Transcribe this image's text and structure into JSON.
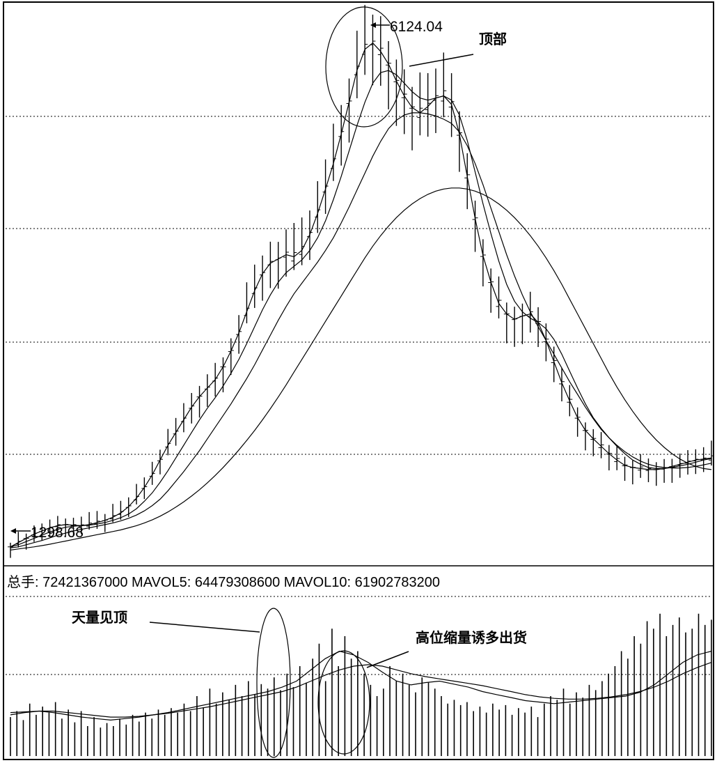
{
  "chart_data": [
    {
      "type": "candlestick-line",
      "title": "",
      "price_labels": {
        "high": "6124.04",
        "low": "1298.68"
      },
      "annotations": {
        "top": "顶部"
      },
      "gridlines": true,
      "series": [
        {
          "values": [
            1300,
            1340,
            1380,
            1420,
            1450,
            1480,
            1500,
            1510,
            1505,
            1500,
            1510,
            1530,
            1550,
            1580,
            1620,
            1680,
            1760,
            1860,
            1980,
            2120,
            2260,
            2380,
            2500,
            2620,
            2720,
            2800,
            2880,
            3000,
            3150,
            3320,
            3520,
            3720,
            3880,
            3980,
            4020,
            4060,
            4040,
            4100,
            4250,
            4450,
            4680,
            4920,
            5200,
            5500,
            5800,
            6000,
            6060,
            5980,
            5860,
            5700,
            5560,
            5450,
            5400,
            5460,
            5540,
            5560,
            5480,
            5200,
            4800,
            4400,
            4050,
            3800,
            3600,
            3500,
            3450,
            3480,
            3500,
            3420,
            3250,
            3050,
            2850,
            2680,
            2520,
            2400,
            2320,
            2250,
            2180,
            2120,
            2070,
            2050,
            2040,
            2030,
            2030,
            2040,
            2060,
            2080,
            2100,
            2120,
            2130,
            2140
          ]
        },
        {
          "values": [
            1300,
            1320,
            1350,
            1380,
            1410,
            1440,
            1465,
            1485,
            1495,
            1500,
            1505,
            1515,
            1530,
            1550,
            1575,
            1610,
            1660,
            1730,
            1810,
            1910,
            2020,
            2140,
            2260,
            2380,
            2500,
            2610,
            2710,
            2820,
            2940,
            3070,
            3220,
            3380,
            3540,
            3680,
            3800,
            3890,
            3950,
            4010,
            4100,
            4220,
            4380,
            4580,
            4800,
            5040,
            5280,
            5500,
            5680,
            5780,
            5800,
            5760,
            5680,
            5600,
            5540,
            5520,
            5540,
            5560,
            5520,
            5380,
            5140,
            4840,
            4540,
            4260,
            4000,
            3780,
            3620,
            3520,
            3460,
            3420,
            3360,
            3260,
            3120,
            2960,
            2800,
            2650,
            2520,
            2420,
            2330,
            2250,
            2180,
            2120,
            2080,
            2050,
            2040,
            2040,
            2050,
            2065,
            2080,
            2100,
            2120,
            2135
          ]
        },
        {
          "values": [
            1290,
            1300,
            1320,
            1340,
            1360,
            1385,
            1410,
            1430,
            1450,
            1465,
            1480,
            1495,
            1510,
            1525,
            1545,
            1570,
            1600,
            1640,
            1690,
            1750,
            1830,
            1920,
            2010,
            2110,
            2210,
            2320,
            2430,
            2540,
            2650,
            2770,
            2890,
            3020,
            3160,
            3300,
            3440,
            3570,
            3690,
            3790,
            3890,
            3990,
            4100,
            4220,
            4360,
            4510,
            4670,
            4830,
            4990,
            5130,
            5250,
            5330,
            5380,
            5400,
            5400,
            5390,
            5370,
            5340,
            5300,
            5220,
            5090,
            4920,
            4720,
            4500,
            4280,
            4060,
            3860,
            3680,
            3520,
            3380,
            3250,
            3120,
            2990,
            2860,
            2740,
            2620,
            2510,
            2410,
            2330,
            2260,
            2200,
            2150,
            2110,
            2080,
            2060,
            2050,
            2045,
            2045,
            2050,
            2060,
            2075,
            2090
          ]
        },
        {
          "values": [
            1270,
            1280,
            1290,
            1300,
            1312,
            1325,
            1340,
            1355,
            1370,
            1385,
            1400,
            1415,
            1430,
            1445,
            1460,
            1480,
            1500,
            1525,
            1555,
            1590,
            1630,
            1675,
            1725,
            1780,
            1840,
            1905,
            1975,
            2050,
            2130,
            2215,
            2305,
            2400,
            2500,
            2605,
            2715,
            2830,
            2950,
            3070,
            3190,
            3310,
            3430,
            3550,
            3670,
            3790,
            3910,
            4030,
            4140,
            4240,
            4330,
            4410,
            4480,
            4540,
            4590,
            4630,
            4660,
            4680,
            4690,
            4690,
            4680,
            4660,
            4630,
            4590,
            4540,
            4480,
            4410,
            4330,
            4240,
            4140,
            4030,
            3910,
            3780,
            3640,
            3500,
            3360,
            3220,
            3080,
            2940,
            2810,
            2690,
            2580,
            2480,
            2390,
            2310,
            2240,
            2180,
            2130,
            2090,
            2060,
            2040,
            2030
          ]
        }
      ],
      "ylim": [
        1200,
        6400
      ]
    },
    {
      "type": "bar-line",
      "title": "",
      "header": {
        "total_label": "总手",
        "total_value": "72421367000",
        "mavol5_label": "MAVOL5",
        "mavol5_value": "64479308600",
        "mavol10_label": "MAVOL10",
        "mavol10_value": "61902783200"
      },
      "annotations": {
        "peak_volume": "天量见顶",
        "shrinking_volume": "高位缩量诱多出货"
      },
      "gridlines": true,
      "bars": [
        52,
        60,
        48,
        70,
        55,
        66,
        58,
        72,
        50,
        62,
        45,
        60,
        40,
        52,
        38,
        44,
        40,
        50,
        42,
        55,
        46,
        58,
        50,
        62,
        55,
        64,
        58,
        70,
        60,
        80,
        65,
        90,
        70,
        85,
        75,
        95,
        80,
        100,
        82,
        96,
        90,
        105,
        88,
        110,
        92,
        120,
        98,
        130,
        150,
        100,
        170,
        120,
        160,
        130,
        140,
        110,
        95,
        80,
        90,
        120,
        100,
        110,
        95,
        85,
        105,
        98,
        90,
        80,
        70,
        75,
        68,
        72,
        60,
        66,
        58,
        70,
        62,
        68,
        55,
        64,
        58,
        66,
        52,
        70,
        80,
        75,
        90,
        70,
        85,
        78,
        95,
        88,
        100,
        110,
        120,
        140,
        130,
        160,
        150,
        180,
        170,
        190,
        160,
        175,
        185,
        165,
        170,
        190,
        175,
        182
      ],
      "series": [
        {
          "values": [
            55,
            58,
            60,
            58,
            55,
            52,
            50,
            48,
            50,
            52,
            55,
            58,
            62,
            66,
            70,
            74,
            78,
            82,
            86,
            92,
            100,
            115,
            130,
            140,
            135,
            125,
            112,
            100,
            95,
            98,
            100,
            96,
            92,
            86,
            82,
            78,
            74,
            72,
            70,
            72,
            74,
            76,
            78,
            80,
            85,
            95,
            110,
            125,
            135,
            140
          ]
        },
        {
          "values": [
            58,
            59,
            60,
            60,
            58,
            56,
            54,
            52,
            52,
            53,
            55,
            57,
            60,
            63,
            66,
            70,
            74,
            78,
            82,
            86,
            92,
            100,
            108,
            115,
            120,
            122,
            120,
            115,
            110,
            106,
            103,
            100,
            97,
            94,
            90,
            86,
            82,
            79,
            77,
            76,
            76,
            77,
            79,
            82,
            86,
            92,
            100,
            110,
            118,
            125
          ]
        }
      ],
      "ylim": [
        0,
        200
      ]
    }
  ]
}
